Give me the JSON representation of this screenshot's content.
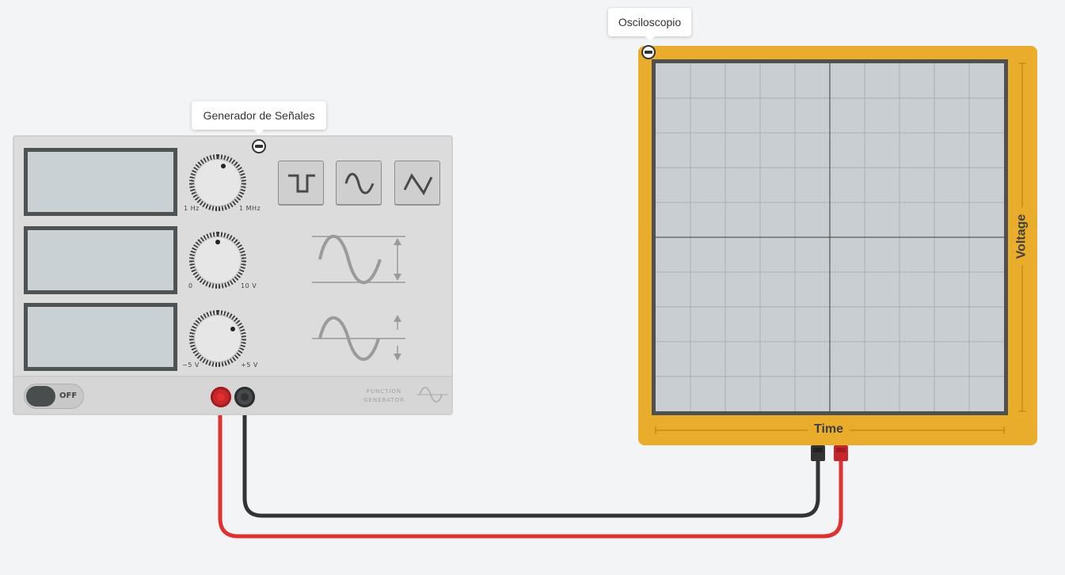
{
  "function_generator": {
    "tooltip": "Generador de Señales",
    "frequency_knob": {
      "min_label": "1 Hz",
      "max_label": "1 MHz"
    },
    "amplitude_knob": {
      "min_label": "0",
      "max_label": "10 V"
    },
    "offset_knob": {
      "min_label": "−5 V",
      "max_label": "+5 V"
    },
    "waveform_buttons": [
      "square-wave-icon",
      "sine-wave-icon",
      "triangle-wave-icon"
    ],
    "power_toggle": {
      "state_label": "OFF"
    },
    "brand_label_line1": "FUNCTION",
    "brand_label_line2": "GENERATOR"
  },
  "oscilloscope": {
    "tooltip": "Osciloscopio",
    "x_axis_label": "Time",
    "y_axis_label": "Voltage"
  },
  "colors": {
    "wire_positive": "#e03030",
    "wire_negative": "#333333",
    "oscilloscope_frame": "#e9ad2b"
  }
}
